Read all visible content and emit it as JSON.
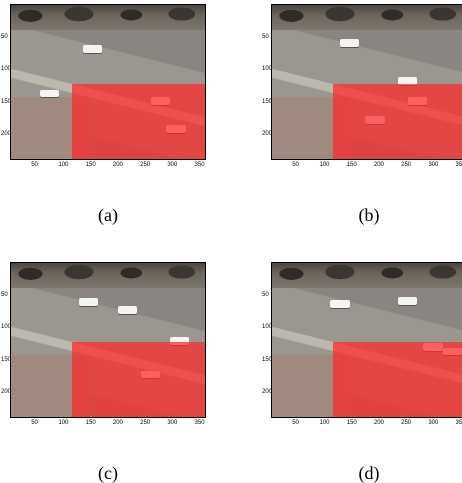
{
  "figure": {
    "x_ticks": [
      "50",
      "100",
      "150",
      "200",
      "250",
      "300",
      "350"
    ],
    "y_ticks": [
      "50",
      "100",
      "150",
      "200"
    ],
    "panels": [
      {
        "caption": "(a)"
      },
      {
        "caption": "(b)"
      },
      {
        "caption": "(c)"
      },
      {
        "caption": "(d)"
      }
    ],
    "overlay_color": "#ff2828"
  }
}
